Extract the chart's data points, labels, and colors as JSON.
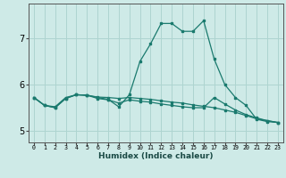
{
  "xlabel": "Humidex (Indice chaleur)",
  "ylabel": "",
  "bg_color": "#ceeae7",
  "grid_color": "#aed4d0",
  "line_color": "#1a7a6e",
  "x_values": [
    0,
    1,
    2,
    3,
    4,
    5,
    6,
    7,
    8,
    9,
    10,
    11,
    12,
    13,
    14,
    15,
    16,
    17,
    18,
    19,
    20,
    21,
    22,
    23
  ],
  "line1": [
    5.72,
    5.55,
    5.52,
    5.72,
    5.78,
    5.77,
    5.73,
    5.72,
    5.7,
    5.72,
    5.7,
    5.68,
    5.65,
    5.62,
    5.6,
    5.56,
    5.53,
    5.5,
    5.45,
    5.4,
    5.33,
    5.26,
    5.22,
    5.18
  ],
  "line2": [
    5.72,
    5.55,
    5.5,
    5.7,
    5.78,
    5.77,
    5.72,
    5.68,
    5.52,
    5.78,
    6.5,
    6.88,
    7.32,
    7.32,
    7.15,
    7.15,
    7.38,
    6.55,
    6.0,
    5.72,
    5.55,
    5.25,
    5.2,
    5.18
  ],
  "line3": [
    5.72,
    5.55,
    5.5,
    5.7,
    5.78,
    5.77,
    5.7,
    5.67,
    5.6,
    5.67,
    5.64,
    5.62,
    5.58,
    5.55,
    5.52,
    5.5,
    5.5,
    5.72,
    5.58,
    5.45,
    5.35,
    5.28,
    5.22,
    5.18
  ],
  "yticks": [
    5,
    6,
    7
  ],
  "ylim": [
    4.75,
    7.75
  ],
  "xlim": [
    -0.5,
    23.5
  ]
}
